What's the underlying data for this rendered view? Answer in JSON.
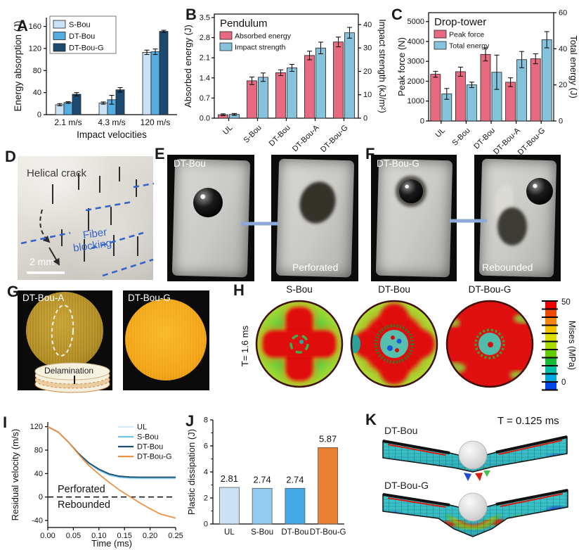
{
  "panels": {
    "A": {
      "letter": "A"
    },
    "B": {
      "letter": "B"
    },
    "C": {
      "letter": "C"
    },
    "D": {
      "letter": "D",
      "crack_label": "Helical crack",
      "fiber_label_line1": "Fiber",
      "fiber_label_line2": "blocking",
      "scale_label": "2 mm"
    },
    "E": {
      "letter": "E",
      "sample_label": "DT-Bou",
      "result_label": "Perforated"
    },
    "F": {
      "letter": "F",
      "sample_label": "DT-Bou-G",
      "result_label": "Rebounded"
    },
    "G": {
      "letter": "G",
      "left_sample_label": "DT-Bou-A",
      "right_sample_label": "DT-Bou-G",
      "annotation_label": "Delamination"
    },
    "H": {
      "letter": "H",
      "time_label": "T= 1.6 ms",
      "disc_labels": [
        "S-Bou",
        "DT-Bou",
        "DT-Bou-G"
      ],
      "colorbar": {
        "label": "Mises (MPa)",
        "max_tick": "50",
        "min_tick": "0",
        "colors_top_to_bottom": [
          "#ee0000",
          "#f04a00",
          "#f58400",
          "#f5be00",
          "#dddd00",
          "#a8da00",
          "#62cc00",
          "#17bb33",
          "#00bfa0",
          "#00a8e0",
          "#0045e8"
        ]
      }
    },
    "I": {
      "letter": "I"
    },
    "J": {
      "letter": "J"
    },
    "K": {
      "letter": "K",
      "time_label": "T = 0.125 ms",
      "top_label": "DT-Bou",
      "bottom_label": "DT-Bou-G"
    }
  },
  "chart_data": [
    {
      "id": "A",
      "type": "bar",
      "title": "",
      "xlabel": "Impact velocities",
      "ylabel": "Energy absorption (J)",
      "categories": [
        "2.1 m/s",
        "4.3 m/s",
        "120 m/s"
      ],
      "series": [
        {
          "name": "S-Bou",
          "color": "#c9e2f5",
          "values": [
            18,
            21,
            113
          ],
          "errors": [
            2,
            2,
            4
          ]
        },
        {
          "name": "DT-Bou",
          "color": "#54ace0",
          "values": [
            22,
            27,
            114
          ],
          "errors": [
            1.5,
            8,
            5
          ]
        },
        {
          "name": "DT-Bou-G",
          "color": "#1c4a70",
          "values": [
            37,
            45,
            151
          ],
          "errors": [
            3,
            4,
            2
          ]
        }
      ],
      "yticks": [
        0,
        40,
        80,
        120,
        160
      ],
      "ylim": [
        0,
        176
      ],
      "legend_position": "top-left",
      "grid": false
    },
    {
      "id": "B",
      "type": "bar",
      "title": "Pendulum",
      "left_label": "Absorbed energy (J)",
      "right_label": "Impact strength (kJ/m²)",
      "categories": [
        "UL",
        "S-Bou",
        "DT-Bou",
        "DT-Bou-A",
        "DT-Bou-G"
      ],
      "left_series": {
        "name": "Absorbed energy",
        "color": "#e76a80",
        "values": [
          0.12,
          1.3,
          1.58,
          2.18,
          2.65
        ],
        "errors": [
          0.03,
          0.13,
          0.1,
          0.15,
          0.17
        ]
      },
      "right_series": {
        "name": "Impact strength",
        "color": "#85c3dc",
        "values": [
          1.6,
          17.5,
          21.5,
          30,
          36.5
        ],
        "errors": [
          0.4,
          1.8,
          1.5,
          2.5,
          2.3
        ]
      },
      "left_ticks": [
        "0.0",
        "0.7",
        "1.4",
        "2.1",
        "2.8",
        "3.5"
      ],
      "left_lim": [
        0,
        3.62
      ],
      "right_ticks": [
        "0",
        "10",
        "20",
        "30",
        "40"
      ],
      "right_lim": [
        0,
        44.5
      ],
      "grid": false
    },
    {
      "id": "C",
      "type": "bar",
      "title": "Drop-tower",
      "left_label": "Peak force (N)",
      "right_label": "Total energy (J)",
      "categories": [
        "UL",
        "S-Bou",
        "DT-Bou",
        "DT-Bou-A",
        "DT-Bou-G"
      ],
      "left_series": {
        "name": "Peak force",
        "color": "#e76a80",
        "values": [
          2350,
          2480,
          3350,
          1950,
          3130
        ],
        "errors": [
          150,
          230,
          330,
          220,
          250
        ]
      },
      "right_series": {
        "name": "Total energy",
        "color": "#85c3dc",
        "values": [
          15,
          20,
          27,
          34,
          45
        ],
        "errors": [
          3,
          1.5,
          9.5,
          4.5,
          4.5
        ]
      },
      "left_ticks": [
        "0",
        "1000",
        "2000",
        "3000",
        "4000",
        "5000"
      ],
      "left_lim": [
        0,
        5450
      ],
      "right_ticks": [
        "0",
        "20",
        "40",
        "60"
      ],
      "right_lim": [
        0,
        60
      ],
      "grid": false
    },
    {
      "id": "I",
      "type": "line",
      "xlabel": "Time (ms)",
      "ylabel": "Residual velocity (m/s)",
      "x": [
        0,
        0.02,
        0.04,
        0.06,
        0.08,
        0.1,
        0.12,
        0.14,
        0.16,
        0.18,
        0.2,
        0.22,
        0.25
      ],
      "series": [
        {
          "name": "UL",
          "color": "#d2e9f8",
          "values": [
            120,
            111,
            94,
            74,
            57,
            45,
            37,
            33,
            31.8,
            31.5,
            31.5,
            31.5,
            31.5
          ]
        },
        {
          "name": "S-Bou",
          "color": "#6fc2e8",
          "values": [
            120,
            111,
            94,
            74,
            57.5,
            46,
            38,
            34,
            32.8,
            32.5,
            32.5,
            32.5,
            32.5
          ]
        },
        {
          "name": "DT-Bou",
          "color": "#1b4f72",
          "values": [
            120,
            111,
            94,
            74.5,
            58.5,
            47.5,
            39.5,
            35.5,
            34.2,
            33.8,
            33.8,
            33.8,
            33.8
          ]
        },
        {
          "name": "DT-Bou-G",
          "color": "#ef9143",
          "values": [
            120,
            111,
            94,
            73,
            54,
            39,
            25,
            12,
            1,
            -10,
            -20,
            -29,
            -36
          ]
        }
      ],
      "xticks": [
        "0.00",
        "0.05",
        "0.10",
        "0.15",
        "0.20",
        "0.25"
      ],
      "yticks": [
        -40,
        0,
        40,
        80,
        120
      ],
      "xlim": [
        0,
        0.25
      ],
      "ylim": [
        -52,
        128
      ],
      "zero_dashed_line": true,
      "annotations": [
        {
          "text": "Perforated"
        },
        {
          "text": "Rebounded"
        }
      ],
      "legend_position": "top-right",
      "grid": false
    },
    {
      "id": "J",
      "type": "bar",
      "ylabel": "Plastic dissipation (J)",
      "categories": [
        "UL",
        "S-Bou",
        "DT-Bou",
        "DT-Bou-G"
      ],
      "values": [
        2.81,
        2.74,
        2.74,
        5.87
      ],
      "value_labels": [
        "2.81",
        "2.74",
        "2.74",
        "5.87"
      ],
      "bar_colors": [
        "#c9e2f6",
        "#93cbf1",
        "#44a9e8",
        "#e8802f"
      ],
      "yticks": [
        0,
        2,
        4,
        6,
        8
      ],
      "ylim": [
        0,
        8
      ],
      "grid": false
    }
  ],
  "colors": {
    "pendulum_pink": "#e76a80",
    "pendulum_blue": "#85c3dc",
    "arrow_periwinkle": "#8ea9d8",
    "fiber_blue": "#3565c8",
    "disc_yellow_dark": "#b8922a",
    "disc_orange": "#f4a71d"
  }
}
